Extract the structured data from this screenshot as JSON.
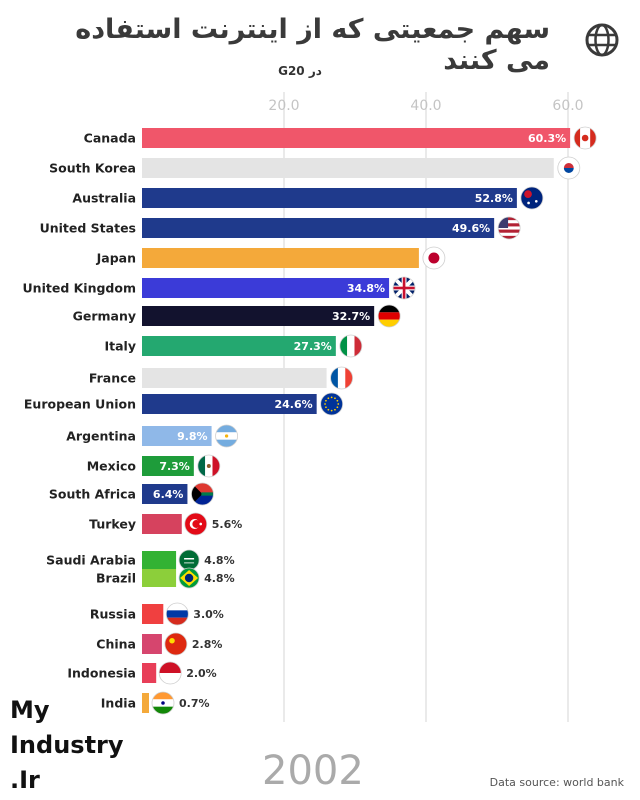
{
  "page": {
    "title": "سهم جمعیتی که از اینترنت استفاده می کنند",
    "subtitle": "در G20",
    "brand_lines": [
      "My",
      "Industry",
      ".Ir"
    ],
    "year": "2002",
    "source": "Data source: world bank",
    "icon": "globe-icon"
  },
  "chart_data": {
    "type": "bar",
    "orientation": "horizontal",
    "title": "سهم جمعیتی که از اینترنت استفاده می کنند",
    "subtitle": "در G20",
    "xlim": [
      0,
      65
    ],
    "xticks": [
      20,
      40,
      60
    ],
    "xtick_labels": [
      "20.0",
      "40.0",
      "60.0"
    ],
    "grid": true,
    "categories": [
      "Canada",
      "South Korea",
      "Australia",
      "United States",
      "Japan",
      "United Kingdom",
      "Germany",
      "Italy",
      "France",
      "European Union",
      "Argentina",
      "Mexico",
      "South Africa",
      "Turkey",
      "Saudi Arabia",
      "Brazil",
      "Russia",
      "China",
      "Indonesia",
      "India"
    ],
    "values": [
      60.3,
      58.0,
      52.8,
      49.6,
      39.0,
      34.8,
      32.7,
      27.3,
      26.0,
      24.6,
      9.8,
      7.3,
      6.4,
      5.6,
      4.8,
      4.8,
      3.0,
      2.8,
      2.0,
      0.7
    ],
    "value_labels": [
      "60.3%",
      "",
      "52.8%",
      "49.6%",
      "",
      "34.8%",
      "32.7%",
      "27.3%",
      "",
      "24.6%",
      "9.8%",
      "7.3%",
      "6.4%",
      "5.6%",
      "4.8%",
      "4.8%",
      "3.0%",
      "2.8%",
      "2.0%",
      "0.7%"
    ],
    "colors": [
      "#f0566a",
      "#e4e4e4",
      "#1f3a8c",
      "#1f3a8c",
      "#f4a93a",
      "#3b3bd8",
      "#12122e",
      "#24a870",
      "#e4e4e4",
      "#1f3a8c",
      "#8fb8e8",
      "#1e9c3a",
      "#1f3a8c",
      "#d6425e",
      "#33b233",
      "#8ccf3a",
      "#f04040",
      "#d6456e",
      "#e83e58",
      "#f4a93a"
    ],
    "flags": [
      "canada-flag",
      "south-korea-flag",
      "australia-flag",
      "united-states-flag",
      "japan-flag",
      "united-kingdom-flag",
      "germany-flag",
      "italy-flag",
      "france-flag",
      "european-union-flag",
      "argentina-flag",
      "mexico-flag",
      "south-africa-flag",
      "turkey-flag",
      "saudi-arabia-flag",
      "brazil-flag",
      "russia-flag",
      "china-flag",
      "indonesia-flag",
      "india-flag"
    ]
  }
}
